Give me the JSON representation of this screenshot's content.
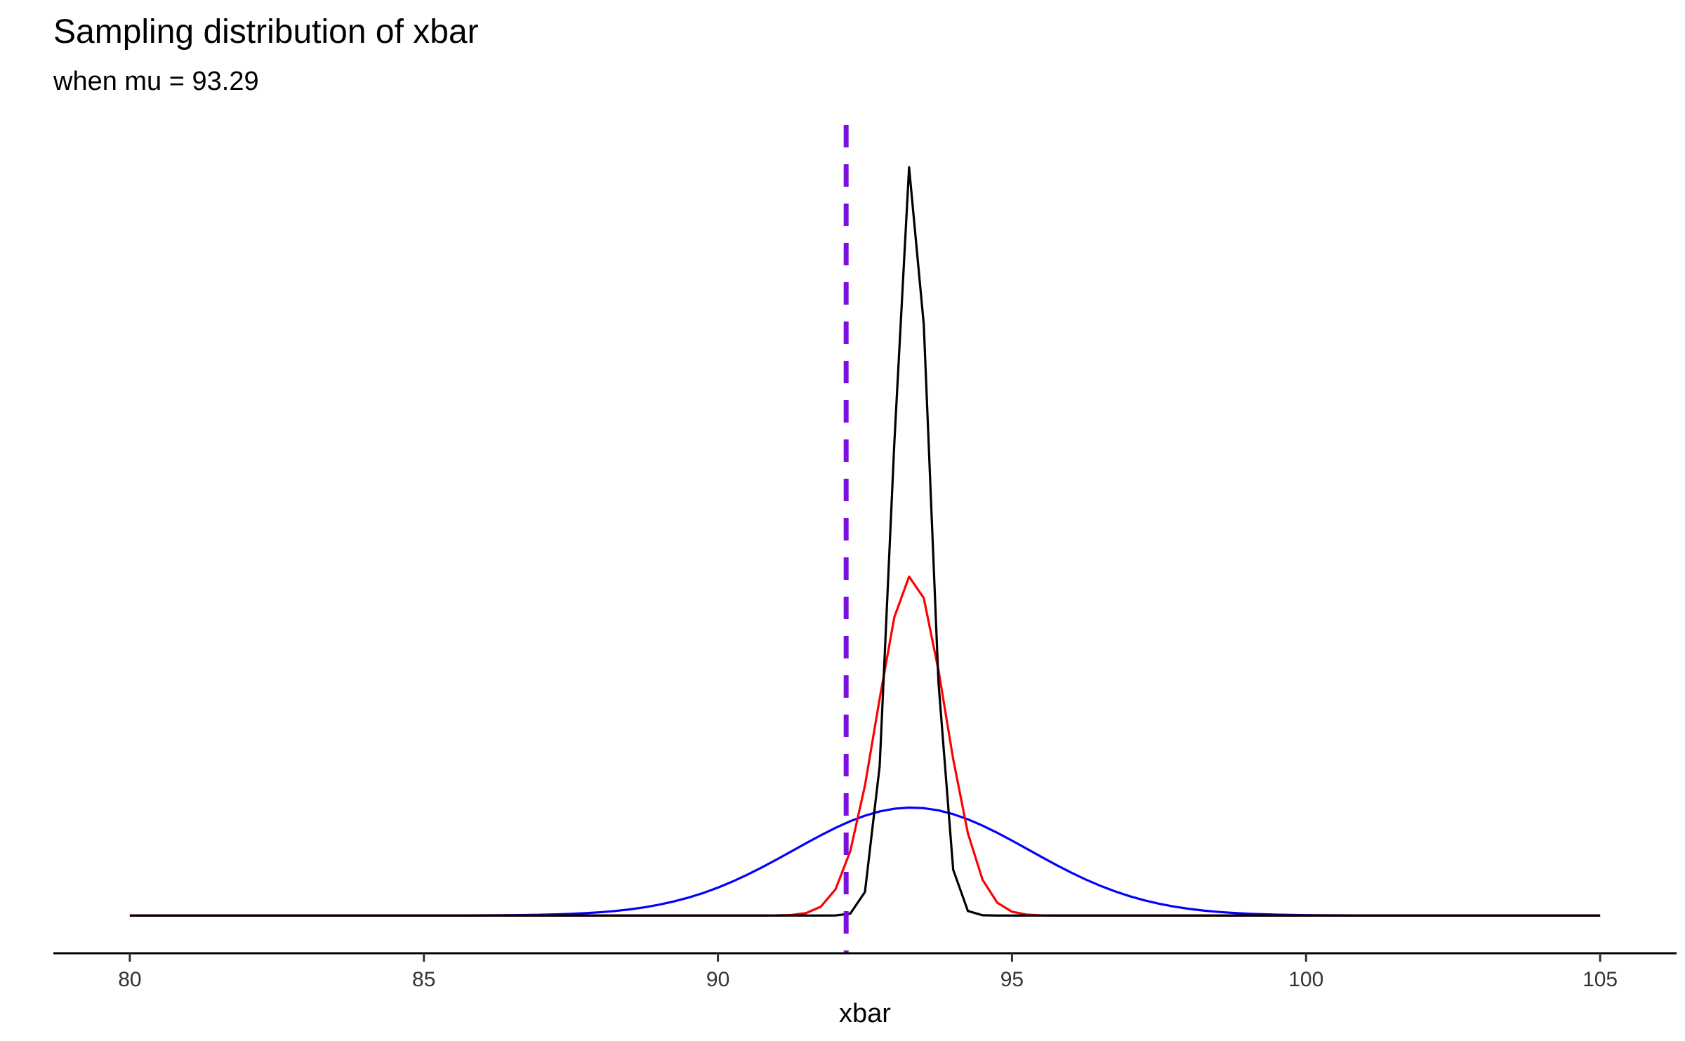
{
  "chart_data": {
    "type": "line",
    "title": "Sampling distribution of xbar",
    "subtitle": "when mu = 93.29",
    "xlabel": "xbar",
    "ylabel": "",
    "xlim": [
      78.7,
      106.3
    ],
    "ylim": [
      -0.05,
      1.05
    ],
    "x_ticks": [
      80,
      85,
      90,
      95,
      100,
      105
    ],
    "x_tick_labels": [
      "80",
      "85",
      "90",
      "95",
      "100",
      "105"
    ],
    "y_axis_visible": false,
    "grid": false,
    "legend": "none",
    "mu": 93.29,
    "reference_line": {
      "x": 92.18,
      "color": "#7a0fe0",
      "style": "dashed"
    },
    "x_step": 0.25,
    "series": [
      {
        "color": "#0000ff",
        "mean": 93.29,
        "sd": 2.0,
        "peak": 0.143
      },
      {
        "color": "#ff0000",
        "mean": 93.29,
        "sd": 0.57,
        "peak": 0.45
      },
      {
        "color": "#000000",
        "mean": 93.29,
        "sd": 0.3,
        "peak": 1.0
      }
    ]
  }
}
